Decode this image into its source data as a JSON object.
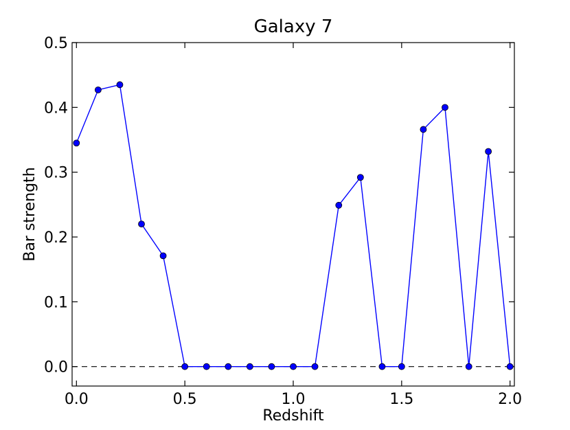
{
  "chart_data": {
    "type": "line",
    "title": "Galaxy 7",
    "xlabel": "Redshift",
    "ylabel": "Bar strength",
    "xlim": [
      -0.02,
      2.02
    ],
    "ylim": [
      -0.03,
      0.5
    ],
    "xticks": [
      0.0,
      0.5,
      1.0,
      1.5,
      2.0
    ],
    "xtick_labels": [
      "0.0",
      "0.5",
      "1.0",
      "1.5",
      "2.0"
    ],
    "yticks": [
      0.0,
      0.1,
      0.2,
      0.3,
      0.4,
      0.5
    ],
    "ytick_labels": [
      "0.0",
      "0.1",
      "0.2",
      "0.3",
      "0.4",
      "0.5"
    ],
    "grid": false,
    "reference_line": {
      "y": 0.0,
      "style": "dashed",
      "color": "#000000"
    },
    "series": [
      {
        "color": "#0000ff",
        "marker": "circle",
        "x": [
          0.0,
          0.1,
          0.2,
          0.3,
          0.4,
          0.5,
          0.6,
          0.7,
          0.8,
          0.9,
          1.0,
          1.1,
          1.21,
          1.31,
          1.41,
          1.5,
          1.6,
          1.7,
          1.81,
          1.9,
          2.0
        ],
        "y": [
          0.345,
          0.427,
          0.435,
          0.22,
          0.171,
          0.0,
          0.0,
          0.0,
          0.0,
          0.0,
          0.0,
          0.0,
          0.249,
          0.292,
          0.0,
          0.0,
          0.366,
          0.4,
          0.0,
          0.332,
          0.0
        ]
      }
    ]
  }
}
